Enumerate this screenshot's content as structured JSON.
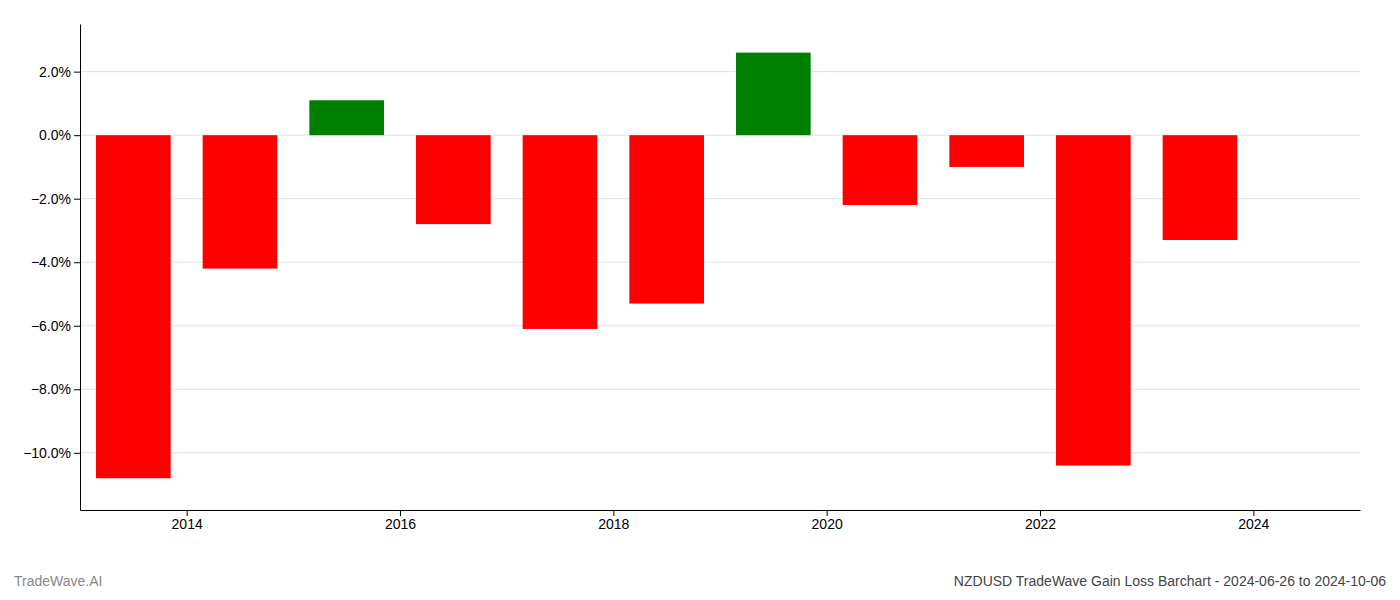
{
  "chart_data": {
    "type": "bar",
    "title": "NZDUSD TradeWave Gain Loss Barchart - 2024-06-26 to 2024-10-06",
    "annotations": [
      "TradeWave.AI"
    ],
    "x": [
      2013.5,
      2014.5,
      2015.5,
      2016.5,
      2017.5,
      2018.5,
      2019.5,
      2020.5,
      2021.5,
      2022.5,
      2023.5
    ],
    "values": [
      -10.8,
      -4.2,
      1.1,
      -2.8,
      -6.1,
      -5.3,
      2.6,
      -2.2,
      -1.0,
      -10.4,
      -3.3
    ],
    "colors": [
      "#ff0000",
      "#ff0000",
      "#008000",
      "#ff0000",
      "#ff0000",
      "#ff0000",
      "#008000",
      "#ff0000",
      "#ff0000",
      "#ff0000",
      "#ff0000"
    ],
    "xlim": [
      2013.0,
      2025.0
    ],
    "xticks": [
      2014,
      2016,
      2018,
      2020,
      2022,
      2024
    ],
    "ylim": [
      -11.8,
      3.5
    ],
    "yticks": [
      {
        "value": -10.0,
        "label": "−10.0%"
      },
      {
        "value": -8.0,
        "label": "−8.0%"
      },
      {
        "value": -6.0,
        "label": "−6.0%"
      },
      {
        "value": -4.0,
        "label": "−4.0%"
      },
      {
        "value": -2.0,
        "label": "−2.0%"
      },
      {
        "value": 0.0,
        "label": "0.0%"
      },
      {
        "value": 2.0,
        "label": "2.0%"
      }
    ],
    "grid": true
  }
}
